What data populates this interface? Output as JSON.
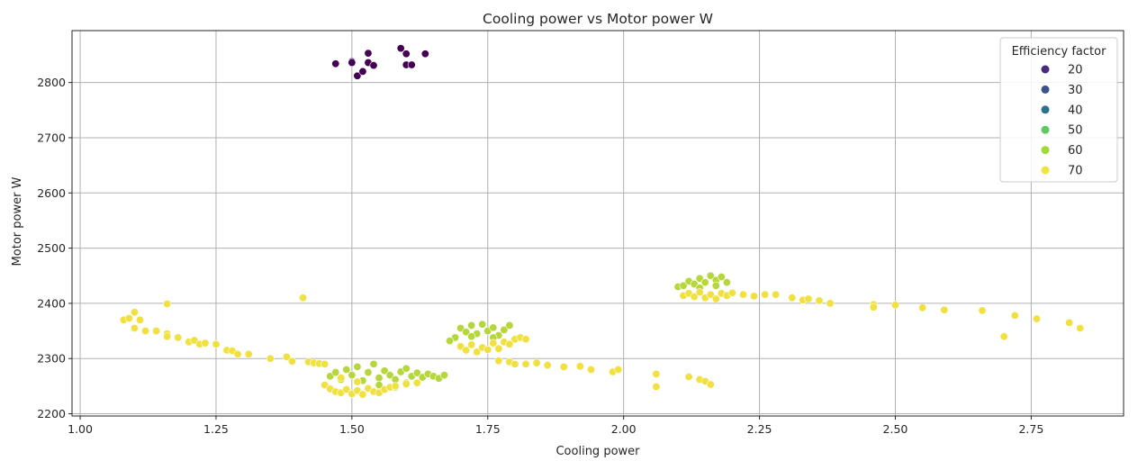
{
  "chart_data": {
    "type": "scatter",
    "title": "Cooling power vs Motor power W",
    "xlabel": "Cooling power",
    "ylabel": "Motor power W",
    "xlim": [
      0.985,
      2.92
    ],
    "ylim": [
      2196,
      2894
    ],
    "xticks": [
      1.0,
      1.25,
      1.5,
      1.75,
      2.0,
      2.25,
      2.5,
      2.75
    ],
    "xtick_labels": [
      "1.00",
      "1.25",
      "1.50",
      "1.75",
      "2.00",
      "2.25",
      "2.50",
      "2.75"
    ],
    "yticks": [
      2200,
      2300,
      2400,
      2500,
      2600,
      2700,
      2800
    ],
    "ytick_labels": [
      "2200",
      "2300",
      "2400",
      "2500",
      "2600",
      "2700",
      "2800"
    ],
    "grid": true,
    "legend": {
      "title": "Efficiency factor",
      "placement": "top-right",
      "entries": [
        {
          "label": "20",
          "color": "#472c7a"
        },
        {
          "label": "30",
          "color": "#3b528b"
        },
        {
          "label": "40",
          "color": "#2c728e"
        },
        {
          "label": "50",
          "color": "#5ec962"
        },
        {
          "label": "60",
          "color": "#a0da39"
        },
        {
          "label": "70",
          "color": "#f0e442"
        }
      ]
    },
    "series": [
      {
        "name": "20",
        "color": "#440154",
        "points": [
          [
            1.47,
            2834
          ],
          [
            1.5,
            2838
          ],
          [
            1.5,
            2836
          ],
          [
            1.51,
            2812
          ],
          [
            1.52,
            2820
          ],
          [
            1.53,
            2853
          ],
          [
            1.53,
            2836
          ],
          [
            1.54,
            2831
          ],
          [
            1.59,
            2862
          ],
          [
            1.6,
            2852
          ],
          [
            1.6,
            2832
          ],
          [
            1.61,
            2832
          ],
          [
            1.635,
            2852
          ]
        ]
      },
      {
        "name": "60",
        "color": "#b5d73c",
        "points": [
          [
            1.46,
            2268
          ],
          [
            1.47,
            2275
          ],
          [
            1.48,
            2262
          ],
          [
            1.49,
            2280
          ],
          [
            1.5,
            2270
          ],
          [
            1.51,
            2285
          ],
          [
            1.52,
            2260
          ],
          [
            1.53,
            2275
          ],
          [
            1.54,
            2290
          ],
          [
            1.55,
            2265
          ],
          [
            1.56,
            2278
          ],
          [
            1.57,
            2270
          ],
          [
            1.58,
            2262
          ],
          [
            1.59,
            2276
          ],
          [
            1.6,
            2282
          ],
          [
            1.61,
            2268
          ],
          [
            1.62,
            2274
          ],
          [
            1.63,
            2266
          ],
          [
            1.64,
            2272
          ],
          [
            1.65,
            2268
          ],
          [
            1.66,
            2264
          ],
          [
            1.67,
            2270
          ],
          [
            1.55,
            2252
          ],
          [
            1.58,
            2248
          ],
          [
            1.6,
            2256
          ],
          [
            1.69,
            2338
          ],
          [
            1.7,
            2355
          ],
          [
            1.71,
            2348
          ],
          [
            1.72,
            2360
          ],
          [
            1.73,
            2345
          ],
          [
            1.74,
            2362
          ],
          [
            1.75,
            2350
          ],
          [
            1.76,
            2356
          ],
          [
            1.77,
            2342
          ],
          [
            1.78,
            2352
          ],
          [
            1.79,
            2360
          ],
          [
            1.72,
            2340
          ],
          [
            1.76,
            2338
          ],
          [
            1.68,
            2332
          ],
          [
            2.1,
            2430
          ],
          [
            2.11,
            2432
          ],
          [
            2.12,
            2440
          ],
          [
            2.13,
            2435
          ],
          [
            2.14,
            2445
          ],
          [
            2.15,
            2438
          ],
          [
            2.16,
            2450
          ],
          [
            2.17,
            2442
          ],
          [
            2.18,
            2448
          ],
          [
            2.19,
            2438
          ],
          [
            2.14,
            2428
          ],
          [
            2.17,
            2432
          ]
        ]
      },
      {
        "name": "70",
        "color": "#f0e140",
        "points": [
          [
            1.08,
            2370
          ],
          [
            1.09,
            2373
          ],
          [
            1.1,
            2384
          ],
          [
            1.1,
            2355
          ],
          [
            1.11,
            2370
          ],
          [
            1.12,
            2350
          ],
          [
            1.14,
            2350
          ],
          [
            1.16,
            2345
          ],
          [
            1.16,
            2399
          ],
          [
            1.16,
            2340
          ],
          [
            1.18,
            2338
          ],
          [
            1.2,
            2330
          ],
          [
            1.21,
            2333
          ],
          [
            1.22,
            2326
          ],
          [
            1.23,
            2328
          ],
          [
            1.25,
            2326
          ],
          [
            1.27,
            2315
          ],
          [
            1.28,
            2314
          ],
          [
            1.29,
            2308
          ],
          [
            1.31,
            2308
          ],
          [
            1.35,
            2300
          ],
          [
            1.38,
            2303
          ],
          [
            1.39,
            2295
          ],
          [
            1.41,
            2410
          ],
          [
            1.42,
            2294
          ],
          [
            1.43,
            2292
          ],
          [
            1.44,
            2291
          ],
          [
            1.45,
            2290
          ],
          [
            1.45,
            2252
          ],
          [
            1.46,
            2245
          ],
          [
            1.47,
            2240
          ],
          [
            1.48,
            2238
          ],
          [
            1.49,
            2244
          ],
          [
            1.5,
            2236
          ],
          [
            1.51,
            2242
          ],
          [
            1.52,
            2235
          ],
          [
            1.53,
            2246
          ],
          [
            1.54,
            2240
          ],
          [
            1.55,
            2238
          ],
          [
            1.56,
            2244
          ],
          [
            1.57,
            2248
          ],
          [
            1.58,
            2250
          ],
          [
            1.6,
            2254
          ],
          [
            1.62,
            2256
          ],
          [
            1.48,
            2265
          ],
          [
            1.51,
            2258
          ],
          [
            1.7,
            2322
          ],
          [
            1.71,
            2315
          ],
          [
            1.72,
            2325
          ],
          [
            1.73,
            2312
          ],
          [
            1.74,
            2320
          ],
          [
            1.75,
            2316
          ],
          [
            1.76,
            2328
          ],
          [
            1.77,
            2318
          ],
          [
            1.78,
            2330
          ],
          [
            1.79,
            2326
          ],
          [
            1.8,
            2335
          ],
          [
            1.81,
            2338
          ],
          [
            1.82,
            2335
          ],
          [
            1.77,
            2296
          ],
          [
            1.79,
            2294
          ],
          [
            1.8,
            2290
          ],
          [
            1.82,
            2290
          ],
          [
            1.84,
            2292
          ],
          [
            1.86,
            2288
          ],
          [
            1.89,
            2285
          ],
          [
            1.92,
            2286
          ],
          [
            1.94,
            2280
          ],
          [
            1.98,
            2276
          ],
          [
            1.99,
            2280
          ],
          [
            2.06,
            2272
          ],
          [
            2.06,
            2249
          ],
          [
            2.12,
            2267
          ],
          [
            2.14,
            2262
          ],
          [
            2.15,
            2259
          ],
          [
            2.16,
            2253
          ],
          [
            2.11,
            2414
          ],
          [
            2.12,
            2418
          ],
          [
            2.13,
            2412
          ],
          [
            2.14,
            2420
          ],
          [
            2.15,
            2410
          ],
          [
            2.16,
            2416
          ],
          [
            2.17,
            2408
          ],
          [
            2.18,
            2418
          ],
          [
            2.19,
            2414
          ],
          [
            2.2,
            2419
          ],
          [
            2.22,
            2416
          ],
          [
            2.24,
            2413
          ],
          [
            2.26,
            2416
          ],
          [
            2.28,
            2416
          ],
          [
            2.31,
            2410
          ],
          [
            2.33,
            2406
          ],
          [
            2.34,
            2408
          ],
          [
            2.36,
            2405
          ],
          [
            2.38,
            2400
          ],
          [
            2.46,
            2398
          ],
          [
            2.46,
            2393
          ],
          [
            2.5,
            2397
          ],
          [
            2.55,
            2392
          ],
          [
            2.59,
            2388
          ],
          [
            2.66,
            2387
          ],
          [
            2.7,
            2340
          ],
          [
            2.72,
            2378
          ],
          [
            2.76,
            2372
          ],
          [
            2.82,
            2365
          ],
          [
            2.84,
            2355
          ]
        ]
      }
    ]
  }
}
